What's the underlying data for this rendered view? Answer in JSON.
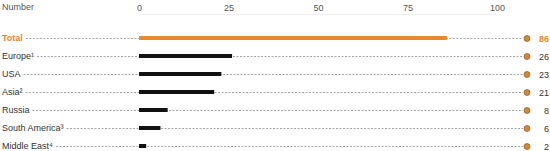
{
  "chart_data": {
    "type": "bar",
    "orientation": "horizontal",
    "xlabel": "Number",
    "categories": [
      "Total",
      "Europe¹",
      "USA",
      "Asia²",
      "Russia",
      "South America³",
      "Middle East⁴"
    ],
    "values": [
      86,
      26,
      23,
      21,
      8,
      6,
      2
    ],
    "colors": [
      "#e8892b",
      "#111111",
      "#111111",
      "#111111",
      "#111111",
      "#111111",
      "#111111"
    ],
    "xlim": [
      0,
      100
    ],
    "xticks": [
      0,
      25,
      50,
      75,
      100
    ],
    "data_labels": true,
    "marker": "circle"
  }
}
